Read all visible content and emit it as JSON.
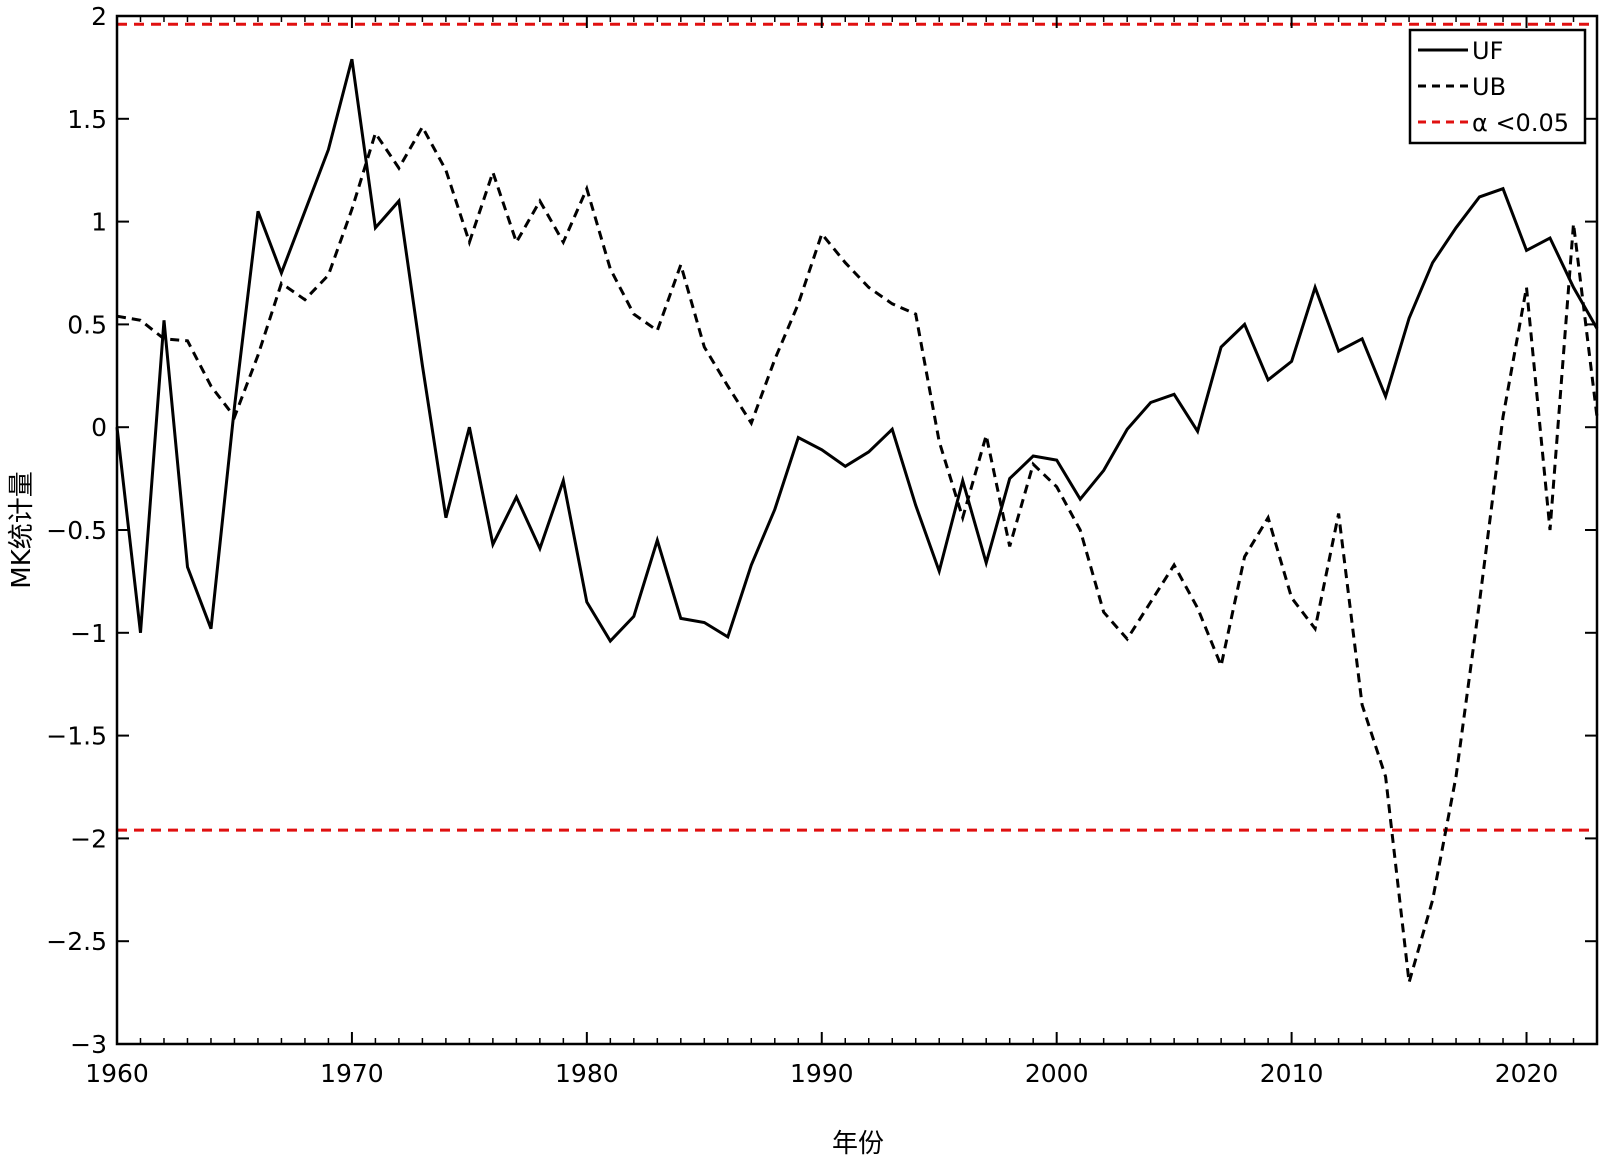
{
  "chart_data": {
    "type": "line",
    "title": "",
    "xlabel": "年份",
    "ylabel": "MK统计量",
    "xlim": [
      1960,
      2023
    ],
    "ylim": [
      -3,
      2
    ],
    "xticks": [
      1960,
      1970,
      1980,
      1990,
      2000,
      2010,
      2020
    ],
    "yticks": [
      2,
      1.5,
      1,
      0.5,
      0,
      -0.5,
      -1,
      -1.5,
      -2,
      -2.5,
      -3
    ],
    "ytick_labels": [
      "2",
      "1.5",
      "1",
      "0.5",
      "0",
      "−0.5",
      "−1",
      "−1.5",
      "−2",
      "−2.5",
      "−3"
    ],
    "grid": false,
    "legend_position": "top-right",
    "series": [
      {
        "name": "UF",
        "style": "solid",
        "color": "#000000",
        "x": [
          1960,
          1961,
          1962,
          1963,
          1964,
          1965,
          1966,
          1967,
          1968,
          1969,
          1970,
          1971,
          1972,
          1973,
          1974,
          1975,
          1976,
          1977,
          1978,
          1979,
          1980,
          1981,
          1982,
          1983,
          1984,
          1985,
          1986,
          1987,
          1988,
          1989,
          1990,
          1991,
          1992,
          1993,
          1994,
          1995,
          1996,
          1997,
          1998,
          1999,
          2000,
          2001,
          2002,
          2003,
          2004,
          2005,
          2006,
          2007,
          2008,
          2009,
          2010,
          2011,
          2012,
          2013,
          2014,
          2015,
          2016,
          2017,
          2018,
          2019,
          2020,
          2021,
          2022,
          2023
        ],
        "y": [
          0,
          -1.0,
          0.52,
          -0.68,
          -0.98,
          0.1,
          1.05,
          0.75,
          1.05,
          1.35,
          1.79,
          0.97,
          1.1,
          0.3,
          -0.44,
          0,
          -0.57,
          -0.34,
          -0.59,
          -0.26,
          -0.85,
          -1.04,
          -0.92,
          -0.55,
          -0.93,
          -0.95,
          -1.02,
          -0.67,
          -0.4,
          -0.05,
          -0.11,
          -0.19,
          -0.12,
          -0.01,
          -0.38,
          -0.7,
          -0.26,
          -0.66,
          -0.25,
          -0.14,
          -0.16,
          -0.35,
          -0.21,
          -0.01,
          0.12,
          0.16,
          -0.02,
          0.39,
          0.5,
          0.23,
          0.32,
          0.68,
          0.37,
          0.43,
          0.15,
          0.53,
          0.8,
          0.97,
          1.12,
          1.16,
          0.86,
          0.92,
          0.68,
          0.48
        ]
      },
      {
        "name": "UB",
        "style": "dashed",
        "color": "#000000",
        "x": [
          1960,
          1961,
          1962,
          1963,
          1964,
          1965,
          1966,
          1967,
          1968,
          1969,
          1970,
          1971,
          1972,
          1973,
          1974,
          1975,
          1976,
          1977,
          1978,
          1979,
          1980,
          1981,
          1982,
          1983,
          1984,
          1985,
          1986,
          1987,
          1988,
          1989,
          1990,
          1991,
          1992,
          1993,
          1994,
          1995,
          1996,
          1997,
          1998,
          1999,
          2000,
          2001,
          2002,
          2003,
          2004,
          2005,
          2006,
          2007,
          2008,
          2009,
          2010,
          2011,
          2012,
          2013,
          2014,
          2015,
          2016,
          2017,
          2018,
          2019,
          2020,
          2021,
          2022,
          2023
        ],
        "y": [
          0.54,
          0.52,
          0.43,
          0.42,
          0.2,
          0.05,
          0.35,
          0.7,
          0.62,
          0.74,
          1.06,
          1.43,
          1.26,
          1.46,
          1.25,
          0.9,
          1.24,
          0.9,
          1.1,
          0.9,
          1.16,
          0.77,
          0.55,
          0.47,
          0.79,
          0.39,
          0.2,
          0.02,
          0.33,
          0.6,
          0.94,
          0.8,
          0.68,
          0.6,
          0.55,
          -0.07,
          -0.44,
          -0.04,
          -0.58,
          -0.18,
          -0.29,
          -0.5,
          -0.9,
          -1.03,
          -0.85,
          -0.67,
          -0.88,
          -1.16,
          -0.63,
          -0.44,
          -0.83,
          -0.98,
          -0.42,
          -1.35,
          -1.7,
          -2.7,
          -2.3,
          -1.7,
          -0.85,
          0.05,
          0.68,
          -0.5,
          0.99,
          0.05
        ]
      },
      {
        "name": "α<0.05",
        "style": "dashed",
        "color": "#e01010",
        "hlines": [
          1.96,
          -1.96
        ]
      }
    ],
    "legend": [
      {
        "label": "UF",
        "style": "solid",
        "color": "#000000"
      },
      {
        "label": "UB",
        "style": "dashed",
        "color": "#000000"
      },
      {
        "label": "α <0.05",
        "style": "dashed",
        "color": "#e01010"
      }
    ]
  }
}
